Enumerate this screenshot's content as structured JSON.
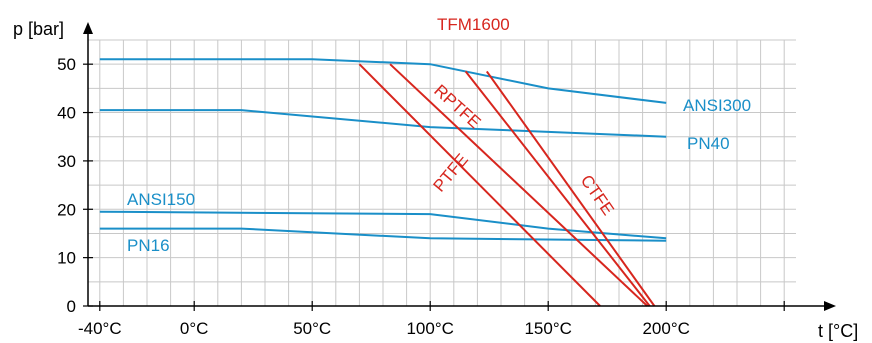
{
  "chart_data": {
    "type": "line",
    "xlabel": "t [°C]",
    "ylabel": "p [bar]",
    "xlim": [
      -45,
      255
    ],
    "ylim": [
      0,
      55
    ],
    "x_ticks": [
      {
        "value": -40,
        "label": "-40°C"
      },
      {
        "value": 0,
        "label": "0°C"
      },
      {
        "value": 50,
        "label": "50°C"
      },
      {
        "value": 100,
        "label": "100°C"
      },
      {
        "value": 150,
        "label": "150°C"
      },
      {
        "value": 200,
        "label": "200°C"
      }
    ],
    "y_ticks": [
      {
        "value": 0,
        "label": "0"
      },
      {
        "value": 10,
        "label": "10"
      },
      {
        "value": 20,
        "label": "20"
      },
      {
        "value": 30,
        "label": "30"
      },
      {
        "value": 40,
        "label": "40"
      },
      {
        "value": 50,
        "label": "50"
      }
    ],
    "grid": true,
    "colors": {
      "blue": "#1a8fc8",
      "red": "#d7261e",
      "grid": "#c8c8c8",
      "axis": "#000000"
    },
    "series": [
      {
        "name": "ANSI300",
        "color": "#1a8fc8",
        "x": [
          -40,
          50,
          100,
          150,
          200
        ],
        "y": [
          51,
          51,
          50,
          45,
          42
        ]
      },
      {
        "name": "PN40",
        "color": "#1a8fc8",
        "x": [
          -40,
          20,
          100,
          150,
          200
        ],
        "y": [
          40.5,
          40.5,
          37,
          36,
          35
        ]
      },
      {
        "name": "ANSI150",
        "color": "#1a8fc8",
        "x": [
          -40,
          100,
          150,
          200
        ],
        "y": [
          19.5,
          19,
          16,
          14
        ]
      },
      {
        "name": "PN16",
        "color": "#1a8fc8",
        "x": [
          -40,
          20,
          100,
          200
        ],
        "y": [
          16,
          16,
          14,
          13.5
        ]
      },
      {
        "name": "PTFE",
        "color": "#d7261e",
        "x": [
          70,
          172
        ],
        "y": [
          50,
          0
        ]
      },
      {
        "name": "RPTFE",
        "color": "#d7261e",
        "x": [
          83,
          192
        ],
        "y": [
          50,
          0
        ]
      },
      {
        "name": "TFM1600",
        "color": "#d7261e",
        "x": [
          115,
          193
        ],
        "y": [
          48.5,
          0
        ]
      },
      {
        "name": "CTFE",
        "color": "#d7261e",
        "x": [
          124,
          195
        ],
        "y": [
          48.5,
          0
        ]
      }
    ]
  }
}
